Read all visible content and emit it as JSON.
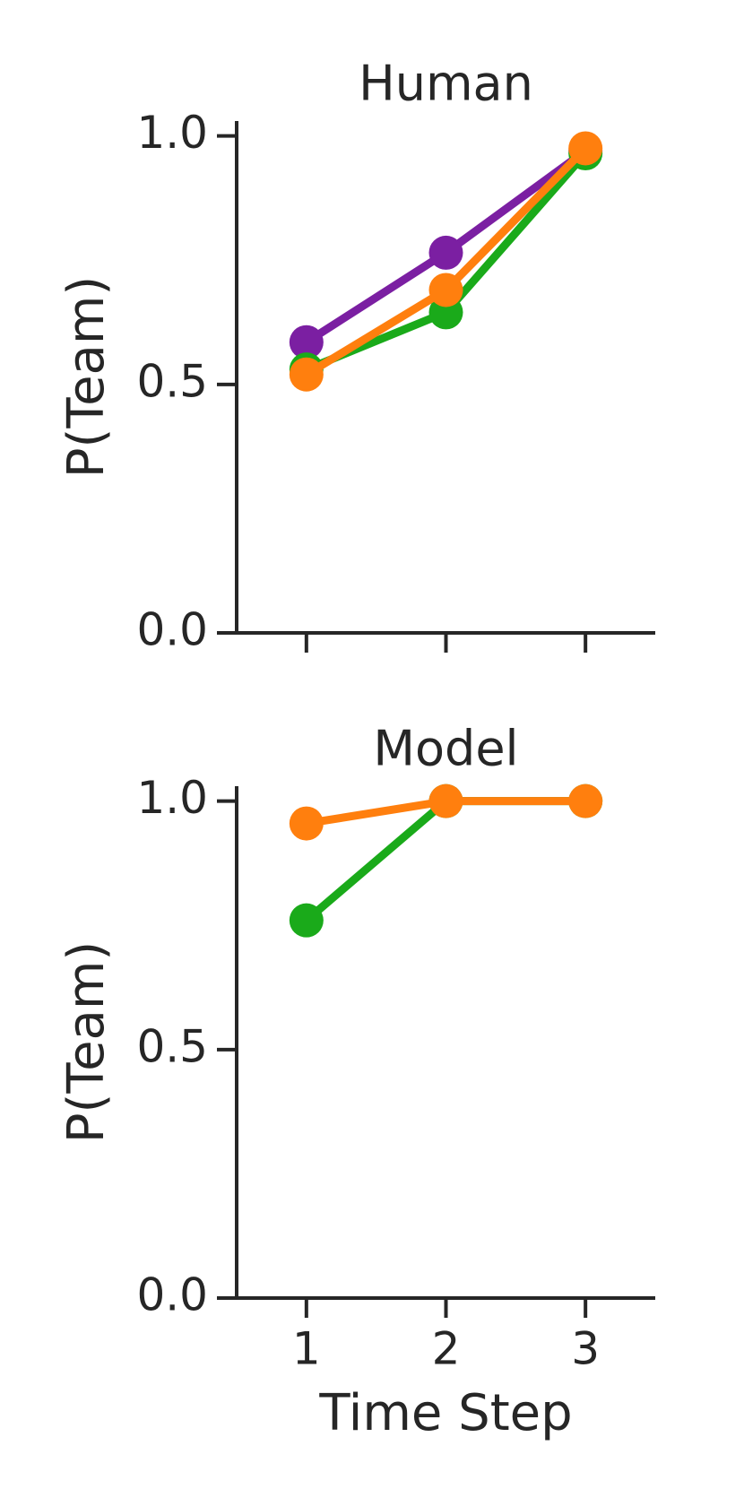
{
  "chart_data": [
    {
      "type": "line",
      "title": "Human",
      "ylabel": "P(Team)",
      "x": [
        1,
        2,
        3
      ],
      "series": [
        {
          "color": "#7b1fa2",
          "values": [
            0.585,
            0.765,
            0.97
          ]
        },
        {
          "color": "#1aaa1a",
          "values": [
            0.53,
            0.645,
            0.965
          ]
        },
        {
          "color": "#ff7f0e",
          "values": [
            0.52,
            0.69,
            0.975
          ]
        }
      ],
      "xlim": [
        0.5,
        3.5
      ],
      "ylim": [
        0,
        1.03
      ],
      "xticks": [
        1,
        2,
        3
      ],
      "xtick_labels": false,
      "yticks": [
        {
          "value": 0,
          "label": "0.0"
        },
        {
          "value": 0.5,
          "label": "0.5"
        },
        {
          "value": 1,
          "label": "1.0"
        }
      ]
    },
    {
      "type": "line",
      "title": "Model",
      "ylabel": "P(Team)",
      "xlabel": "Time Step",
      "x": [
        1,
        2,
        3
      ],
      "series": [
        {
          "color": "#1aaa1a",
          "values": [
            0.76,
            1.0,
            1.0
          ]
        },
        {
          "color": "#ff7f0e",
          "values": [
            0.955,
            1.0,
            1.0
          ]
        }
      ],
      "xlim": [
        0.5,
        3.5
      ],
      "ylim": [
        0,
        1.03
      ],
      "xticks": [
        1,
        2,
        3
      ],
      "xtick_labels": true,
      "yticks": [
        {
          "value": 0,
          "label": "0.0"
        },
        {
          "value": 0.5,
          "label": "0.5"
        },
        {
          "value": 1,
          "label": "1.0"
        }
      ]
    }
  ]
}
